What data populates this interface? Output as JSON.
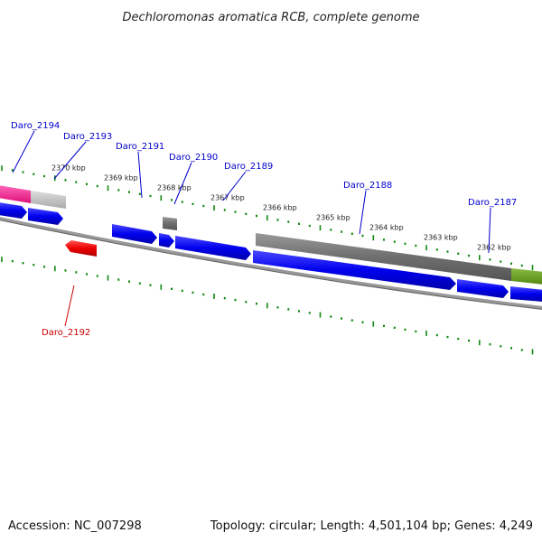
{
  "title": "Dechloromonas aromatica RCB, complete genome",
  "footer": {
    "accession": "Accession: NC_007298",
    "summary": "Topology: circular; Length: 4,501,104 bp; Genes: 4,249"
  },
  "colors": {
    "background": "#ffffff",
    "forward_gene": "#0000ee",
    "reverse_gene": "#ee0000",
    "pseudo_gray": "#777777",
    "light_gray": "#bbbbbb",
    "magenta": "#ee2288",
    "olive": "#669922",
    "backbone": "#888888",
    "tick": "#118811",
    "label_blue": "#0000cc",
    "label_red": "#cc0000"
  },
  "scale": {
    "unit": "kbp",
    "ticks": [
      {
        "pos": 2370,
        "label": "2370 kbp"
      },
      {
        "pos": 2369,
        "label": "2369 kbp"
      },
      {
        "pos": 2368,
        "label": "2368 kbp"
      },
      {
        "pos": 2367,
        "label": "2367 kbp"
      },
      {
        "pos": 2366,
        "label": "2366 kbp"
      },
      {
        "pos": 2365,
        "label": "2365 kbp"
      },
      {
        "pos": 2364,
        "label": "2364 kbp"
      },
      {
        "pos": 2363,
        "label": "2363 kbp"
      },
      {
        "pos": 2362,
        "label": "2362 kbp"
      }
    ]
  },
  "gene_labels": [
    {
      "name": "Daro_2194",
      "color": "blue"
    },
    {
      "name": "Daro_2193",
      "color": "blue"
    },
    {
      "name": "Daro_2191",
      "color": "blue"
    },
    {
      "name": "Daro_2190",
      "color": "blue"
    },
    {
      "name": "Daro_2189",
      "color": "blue"
    },
    {
      "name": "Daro_2188",
      "color": "blue"
    },
    {
      "name": "Daro_2187",
      "color": "blue"
    },
    {
      "name": "Daro_2192",
      "color": "red"
    }
  ]
}
